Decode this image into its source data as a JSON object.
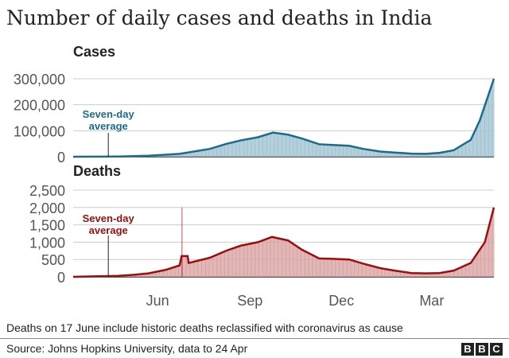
{
  "title": "Number of daily cases and deaths in India",
  "note": "Deaths on 17 June include historic deaths reclassified with coronavirus as cause",
  "source": "Source: Johns Hopkins University, data to 24 Apr",
  "logo": "BBC",
  "chart_data": [
    {
      "type": "bar",
      "title": "Cases",
      "annotation": "Seven-day average",
      "annotation_date": "2020-04-05",
      "bar_color": "#9fc3d1",
      "line_color": "#1c6b8c",
      "ylim": [
        0,
        300000
      ],
      "yticks": [
        0,
        100000,
        200000,
        300000
      ],
      "ytick_labels": [
        "0",
        "100,000",
        "200,000",
        "300,000"
      ],
      "x_range": [
        "2020-03-01",
        "2021-04-24"
      ],
      "grid": true,
      "seven_day_average": [
        [
          "2020-03-01",
          0
        ],
        [
          "2020-04-15",
          900
        ],
        [
          "2020-05-15",
          4000
        ],
        [
          "2020-06-15",
          11000
        ],
        [
          "2020-07-15",
          30000
        ],
        [
          "2020-08-01",
          50000
        ],
        [
          "2020-08-15",
          63000
        ],
        [
          "2020-09-01",
          75000
        ],
        [
          "2020-09-16",
          93000
        ],
        [
          "2020-10-01",
          85000
        ],
        [
          "2020-10-15",
          70000
        ],
        [
          "2020-11-01",
          48000
        ],
        [
          "2020-11-15",
          45000
        ],
        [
          "2020-12-01",
          42000
        ],
        [
          "2020-12-15",
          30000
        ],
        [
          "2021-01-01",
          20000
        ],
        [
          "2021-01-15",
          16000
        ],
        [
          "2021-02-01",
          12000
        ],
        [
          "2021-02-15",
          11000
        ],
        [
          "2021-03-01",
          15000
        ],
        [
          "2021-03-15",
          25000
        ],
        [
          "2021-04-01",
          65000
        ],
        [
          "2021-04-10",
          140000
        ],
        [
          "2021-04-17",
          220000
        ],
        [
          "2021-04-24",
          300000
        ]
      ]
    },
    {
      "type": "bar",
      "title": "Deaths",
      "annotation": "Seven-day average",
      "annotation_date": "2020-04-05",
      "bar_color": "#d9a3a3",
      "line_color": "#9b0e0e",
      "ylim": [
        0,
        2500
      ],
      "yticks": [
        0,
        500,
        1000,
        1500,
        2000,
        2500
      ],
      "ytick_labels": [
        "0",
        "500",
        "1,000",
        "1,500",
        "2,000",
        "2,500"
      ],
      "x_range": [
        "2020-03-01",
        "2021-04-24"
      ],
      "grid": true,
      "xticks": [
        "2020-06-01",
        "2020-09-01",
        "2020-12-01",
        "2021-03-01"
      ],
      "xtick_labels": [
        "Jun",
        "Sep",
        "Dec",
        "Mar"
      ],
      "spike": [
        "2020-06-17",
        2000
      ],
      "seven_day_average": [
        [
          "2020-03-01",
          0
        ],
        [
          "2020-04-15",
          30
        ],
        [
          "2020-05-01",
          60
        ],
        [
          "2020-05-15",
          100
        ],
        [
          "2020-06-01",
          200
        ],
        [
          "2020-06-15",
          330
        ],
        [
          "2020-06-17",
          600
        ],
        [
          "2020-06-23",
          600
        ],
        [
          "2020-06-24",
          400
        ],
        [
          "2020-07-15",
          550
        ],
        [
          "2020-08-01",
          760
        ],
        [
          "2020-08-15",
          900
        ],
        [
          "2020-09-01",
          1000
        ],
        [
          "2020-09-15",
          1150
        ],
        [
          "2020-10-01",
          1050
        ],
        [
          "2020-10-15",
          780
        ],
        [
          "2020-11-01",
          530
        ],
        [
          "2020-11-15",
          520
        ],
        [
          "2020-12-01",
          500
        ],
        [
          "2020-12-15",
          380
        ],
        [
          "2021-01-01",
          250
        ],
        [
          "2021-01-15",
          180
        ],
        [
          "2021-02-01",
          110
        ],
        [
          "2021-02-15",
          100
        ],
        [
          "2021-03-01",
          110
        ],
        [
          "2021-03-15",
          180
        ],
        [
          "2021-04-01",
          400
        ],
        [
          "2021-04-15",
          1000
        ],
        [
          "2021-04-24",
          2000
        ]
      ]
    }
  ]
}
